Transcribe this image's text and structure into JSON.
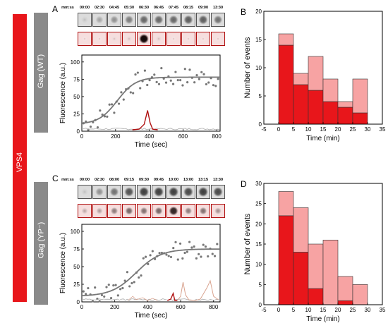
{
  "left_bar": {
    "label": "VPS4",
    "color": "#e8161b"
  },
  "rows": [
    {
      "letter": "A",
      "gag_label": "Gag (WT)",
      "timestamps_header": "mm:ss",
      "timestamps": [
        "00:00",
        "02:30",
        "04:45",
        "05:30",
        "06:30",
        "06:45",
        "07:45",
        "08:15",
        "09:00",
        "13:30"
      ],
      "spot_levels": [
        0.15,
        0.3,
        0.4,
        0.5,
        0.6,
        0.6,
        0.6,
        0.65,
        0.65,
        0.55
      ],
      "red_spot_levels": [
        0.05,
        0.05,
        0.08,
        0.1,
        0.95,
        0.1,
        0.05,
        0.05,
        0.05,
        0.05
      ],
      "plot": {
        "xlabel": "Time (sec)",
        "ylabel": "Fluorescence (a.u.)",
        "xticks": [
          "0",
          "200",
          "400",
          "600",
          "800"
        ],
        "yticks": [
          "0",
          "25",
          "50",
          "75",
          "100"
        ],
        "xlim": [
          0,
          820
        ],
        "ylim": [
          0,
          110
        ]
      }
    },
    {
      "letter": "C",
      "gag_label": "Gag (YP⁻)",
      "timestamps_header": "mm:ss",
      "timestamps": [
        "00:00",
        "02:30",
        "08:00",
        "09:15",
        "09:30",
        "09:45",
        "10:00",
        "13:00",
        "13:15",
        "13:30"
      ],
      "spot_levels": [
        0.15,
        0.4,
        0.55,
        0.7,
        0.8,
        0.8,
        0.8,
        0.75,
        0.8,
        0.75
      ],
      "red_spot_levels": [
        0.2,
        0.25,
        0.4,
        0.5,
        0.45,
        0.5,
        0.8,
        0.4,
        0.45,
        0.3
      ],
      "plot": {
        "xlabel": "Time (sec)",
        "ylabel": "Fluorescence (a.u.)",
        "xticks": [
          "0",
          "200",
          "400",
          "600",
          "800"
        ],
        "yticks": [
          "0",
          "25",
          "50",
          "75",
          "100"
        ],
        "xlim": [
          0,
          840
        ],
        "ylim": [
          0,
          110
        ]
      }
    }
  ],
  "chart_data": [
    {
      "panel": "B",
      "type": "bar",
      "xlabel": "Time (min)",
      "ylabel": "Number of events",
      "xlim": [
        -5,
        35
      ],
      "ylim": [
        0,
        20
      ],
      "xticks": [
        "-5",
        "0",
        "5",
        "10",
        "15",
        "20",
        "25",
        "30",
        "35"
      ],
      "yticks": [
        "0",
        "5",
        "10",
        "15",
        "20"
      ],
      "bin_width": 5,
      "bins": [
        0,
        5,
        10,
        15,
        20,
        25
      ],
      "series": [
        {
          "values": [
            14,
            7,
            6,
            4,
            3,
            2
          ],
          "color": "#e8161b"
        },
        {
          "values": [
            2,
            2,
            6,
            4,
            1,
            6
          ],
          "color": "#f7a3a3"
        }
      ]
    },
    {
      "panel": "D",
      "type": "bar",
      "xlabel": "Time (min)",
      "ylabel": "Number of events",
      "xlim": [
        -5,
        35
      ],
      "ylim": [
        0,
        30
      ],
      "xticks": [
        "-5",
        "0",
        "5",
        "10",
        "15",
        "20",
        "25",
        "30",
        "35"
      ],
      "yticks": [
        "0",
        "5",
        "10",
        "15",
        "20",
        "25",
        "30"
      ],
      "bin_width": 5,
      "bins": [
        0,
        5,
        10,
        15,
        20,
        25
      ],
      "series": [
        {
          "values": [
            22,
            13,
            4,
            0,
            1,
            0
          ],
          "color": "#e8161b"
        },
        {
          "values": [
            6,
            11,
            11,
            16,
            6,
            5
          ],
          "color": "#f7a3a3"
        }
      ]
    }
  ]
}
